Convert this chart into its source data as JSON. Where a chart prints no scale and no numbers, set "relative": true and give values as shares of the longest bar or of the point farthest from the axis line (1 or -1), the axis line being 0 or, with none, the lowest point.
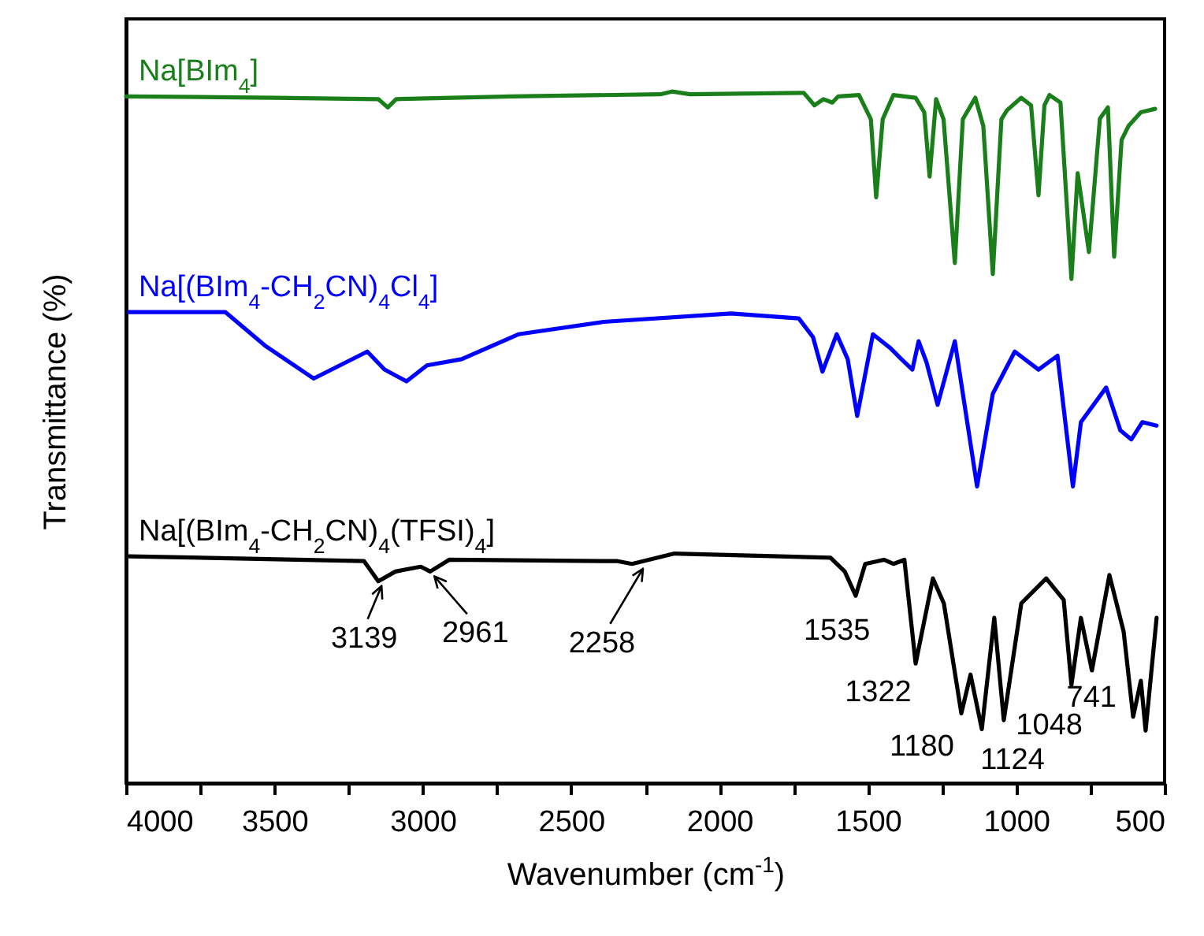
{
  "chart_data": {
    "type": "line",
    "relative": true,
    "xlabel": "Wavenumber (cm$^{-1}$)",
    "ylabel": "Transmittance (%)",
    "xlim": [
      4000,
      500
    ],
    "xticks": [
      4000,
      {
        "value": 3750,
        "label": null
      },
      3500,
      {
        "value": 3250,
        "label": null
      },
      3000,
      {
        "value": 2750,
        "label": null
      },
      2500,
      {
        "value": 2250,
        "label": null
      },
      2000,
      {
        "value": 1750,
        "label": null
      },
      1500,
      {
        "value": 1250,
        "label": null
      },
      1000,
      {
        "value": 750,
        "label": null
      },
      500
    ],
    "tick_labels": "x",
    "grid": false,
    "series": [
      {
        "name": "Na[BIm$_{4}$]",
        "color": "#1a7f1a",
        "x": [
          4000,
          3500,
          3150,
          3118,
          3090,
          2700,
          2200,
          2160,
          2100,
          1716,
          1680,
          1650,
          1620,
          1600,
          1530,
          1490,
          1472,
          1450,
          1414,
          1339,
          1310,
          1292,
          1270,
          1245,
          1207,
          1180,
          1138,
          1111,
          1079,
          1050,
          1031,
          983,
          950,
          925,
          905,
          888,
          851,
          814,
          793,
          755,
          718,
          691,
          670,
          645,
          622,
          580,
          532
        ],
        "values": [
          0.993,
          0.991,
          0.989,
          0.977,
          0.989,
          0.993,
          0.996,
          1.0,
          0.996,
          0.998,
          0.98,
          0.989,
          0.984,
          0.993,
          0.995,
          0.96,
          0.847,
          0.96,
          0.995,
          0.991,
          0.97,
          0.877,
          0.989,
          0.96,
          0.752,
          0.96,
          0.991,
          0.95,
          0.736,
          0.96,
          0.973,
          0.991,
          0.98,
          0.85,
          0.98,
          0.995,
          0.984,
          0.729,
          0.882,
          0.768,
          0.961,
          0.977,
          0.761,
          0.93,
          0.95,
          0.97,
          0.975
        ]
      },
      {
        "name": "Na[(BIm$_{4}$-CH$_{2}$CN)$_{4}$Cl$_{4}$]",
        "color": "#0000ff",
        "x": [
          3990,
          3665,
          3533,
          3368,
          3187,
          3129,
          3055,
          2986,
          2869,
          2678,
          2391,
          1961,
          1733,
          1685,
          1653,
          1605,
          1568,
          1536,
          1483,
          1424,
          1387,
          1350,
          1329,
          1302,
          1265,
          1207,
          1132,
          1079,
          1005,
          925,
          861,
          809,
          782,
          697,
          649,
          612,
          575,
          527
        ],
        "values": [
          0.681,
          0.681,
          0.633,
          0.585,
          0.624,
          0.598,
          0.581,
          0.604,
          0.613,
          0.649,
          0.667,
          0.679,
          0.672,
          0.645,
          0.595,
          0.649,
          0.613,
          0.531,
          0.649,
          0.629,
          0.613,
          0.598,
          0.639,
          0.608,
          0.547,
          0.639,
          0.429,
          0.563,
          0.624,
          0.598,
          0.618,
          0.429,
          0.522,
          0.572,
          0.51,
          0.497,
          0.522,
          0.517
        ]
      },
      {
        "name": "Na[(BIm$_{4}$-CH$_{2}$CN)$_{4}$(TFSI)$_{4}$]",
        "color": "#000000",
        "x": [
          3990,
          3198,
          3150,
          3092,
          3007,
          2975,
          2911,
          2343,
          2295,
          2152,
          1626,
          1578,
          1541,
          1509,
          1446,
          1414,
          1377,
          1339,
          1281,
          1244,
          1185,
          1154,
          1116,
          1074,
          1042,
          983,
          899,
          840,
          814,
          782,
          745,
          686,
          638,
          606,
          580,
          564,
          527
        ],
        "values": [
          0.328,
          0.321,
          0.292,
          0.306,
          0.313,
          0.306,
          0.323,
          0.321,
          0.317,
          0.332,
          0.326,
          0.306,
          0.271,
          0.317,
          0.323,
          0.317,
          0.323,
          0.173,
          0.296,
          0.26,
          0.101,
          0.157,
          0.078,
          0.239,
          0.091,
          0.26,
          0.296,
          0.265,
          0.142,
          0.239,
          0.163,
          0.301,
          0.219,
          0.096,
          0.148,
          0.076,
          0.239
        ]
      }
    ],
    "annotations": [
      {
        "text": "3139",
        "x": 3139,
        "y": 0.292
      },
      {
        "text": "2961",
        "x": 2961,
        "y": 0.306
      },
      {
        "text": "2258",
        "x": 2258,
        "y": 0.317
      },
      {
        "text": "1535",
        "x": 1535,
        "y": 0.271
      },
      {
        "text": "1322",
        "x": 1322,
        "y": 0.173
      },
      {
        "text": "1180",
        "x": 1180,
        "y": 0.101
      },
      {
        "text": "1124",
        "x": 1124,
        "y": 0.078
      },
      {
        "text": "1048",
        "x": 1048,
        "y": 0.091
      },
      {
        "text": "741",
        "x": 741,
        "y": 0.163
      }
    ]
  }
}
